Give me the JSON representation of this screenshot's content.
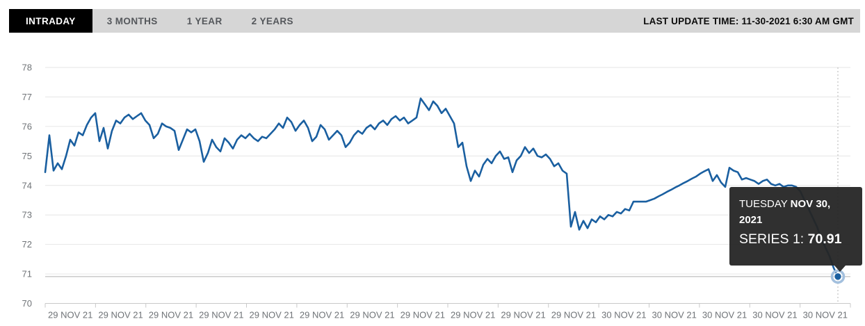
{
  "toolbar": {
    "tabs": [
      {
        "label": "INTRADAY",
        "active": true
      },
      {
        "label": "3 MONTHS",
        "active": false
      },
      {
        "label": "1 YEAR",
        "active": false
      },
      {
        "label": "2 YEARS",
        "active": false
      }
    ],
    "last_update": "LAST UPDATE TIME: 11-30-2021 6:30 AM GMT"
  },
  "tooltip": {
    "day": "TUESDAY ",
    "date": "NOV 30, 2021",
    "series_label": "SERIES 1: ",
    "value": "70.91"
  },
  "colors": {
    "line": "#1a5fa0",
    "marker_halo": "#a3c0de",
    "grid": "#e6e6e6",
    "axis": "#c9c9c9",
    "value_line": "#c9c9c9",
    "crosshair": "#c2c2c2",
    "toolbar_bg": "#d6d6d6",
    "active_tab_bg": "#000000",
    "tooltip_bg": "#252525"
  },
  "chart_data": {
    "type": "line",
    "title": "",
    "xlabel": "",
    "ylabel": "",
    "ylim": [
      70,
      78
    ],
    "y_ticks": [
      70,
      71,
      72,
      73,
      74,
      75,
      76,
      77,
      78
    ],
    "grid": true,
    "legend": "none",
    "x_tick_labels": [
      "29 NOV 21",
      "29 NOV 21",
      "29 NOV 21",
      "29 NOV 21",
      "29 NOV 21",
      "29 NOV 21",
      "29 NOV 21",
      "29 NOV 21",
      "29 NOV 21",
      "29 NOV 21",
      "29 NOV 21",
      "30 NOV 21",
      "30 NOV 21",
      "30 NOV 21",
      "30 NOV 21",
      "30 NOV 21"
    ],
    "hover_point": {
      "x_label": "TUESDAY NOV 30, 2021",
      "value": 70.91
    },
    "series": [
      {
        "name": "SERIES 1",
        "color": "#1a5fa0",
        "values": [
          74.45,
          75.7,
          74.5,
          74.75,
          74.55,
          75.0,
          75.55,
          75.35,
          75.8,
          75.7,
          76.05,
          76.3,
          76.45,
          75.5,
          75.95,
          75.25,
          75.85,
          76.2,
          76.1,
          76.3,
          76.4,
          76.25,
          76.35,
          76.45,
          76.2,
          76.05,
          75.6,
          75.75,
          76.1,
          76.0,
          75.95,
          75.85,
          75.2,
          75.55,
          75.9,
          75.8,
          75.9,
          75.5,
          74.8,
          75.1,
          75.55,
          75.3,
          75.15,
          75.6,
          75.45,
          75.25,
          75.55,
          75.7,
          75.6,
          75.75,
          75.6,
          75.5,
          75.65,
          75.6,
          75.75,
          75.9,
          76.1,
          75.95,
          76.3,
          76.15,
          75.85,
          76.05,
          76.2,
          75.95,
          75.5,
          75.65,
          76.05,
          75.9,
          75.55,
          75.7,
          75.85,
          75.7,
          75.3,
          75.45,
          75.7,
          75.85,
          75.75,
          75.95,
          76.05,
          75.9,
          76.1,
          76.2,
          76.05,
          76.25,
          76.35,
          76.2,
          76.3,
          76.1,
          76.2,
          76.3,
          76.95,
          76.75,
          76.55,
          76.85,
          76.7,
          76.45,
          76.6,
          76.35,
          76.1,
          75.3,
          75.45,
          74.65,
          74.15,
          74.5,
          74.3,
          74.7,
          74.9,
          74.75,
          75.0,
          75.15,
          74.9,
          74.95,
          74.45,
          74.85,
          75.0,
          75.3,
          75.1,
          75.25,
          75.0,
          74.95,
          75.05,
          74.9,
          74.65,
          74.75,
          74.5,
          74.4,
          72.6,
          73.1,
          72.5,
          72.8,
          72.55,
          72.85,
          72.75,
          72.95,
          72.85,
          73.0,
          72.95,
          73.1,
          73.05,
          73.2,
          73.15,
          73.45,
          73.45,
          73.45,
          73.45,
          73.5,
          73.55,
          73.63,
          73.7,
          73.78,
          73.85,
          73.93,
          74.0,
          74.08,
          74.15,
          74.23,
          74.3,
          74.4,
          74.48,
          74.55,
          74.15,
          74.35,
          74.1,
          73.95,
          74.6,
          74.5,
          74.45,
          74.2,
          74.25,
          74.2,
          74.15,
          74.05,
          74.15,
          74.2,
          74.05,
          74.0,
          74.05,
          73.95,
          74.0,
          74.0,
          73.95,
          73.8,
          73.5,
          73.2,
          72.9,
          72.6,
          72.2,
          71.9,
          71.6,
          71.2,
          70.91
        ]
      }
    ]
  }
}
